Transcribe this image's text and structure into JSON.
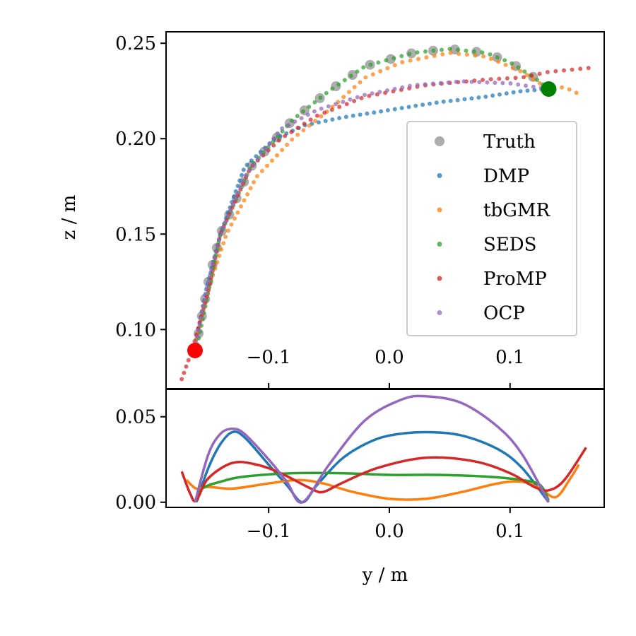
{
  "chart_data": [
    {
      "type": "scatter",
      "name": "trajectory-plot",
      "xlabel": "",
      "ylabel": "z / m",
      "xlim": [
        -0.185,
        0.178
      ],
      "ylim": [
        0.069,
        0.256
      ],
      "xticks": [
        -0.1,
        0.0,
        0.1
      ],
      "xtick_labels": [
        "−0.1",
        "0.0",
        "0.1"
      ],
      "yticks": [
        0.1,
        0.15,
        0.2,
        0.25
      ],
      "ytick_labels": [
        "0.10",
        "0.15",
        "0.20",
        "0.25"
      ],
      "legend_position": "center-right",
      "start_point": {
        "y": -0.161,
        "z": 0.089,
        "color": "#ff0000"
      },
      "goal_point": {
        "y": 0.132,
        "z": 0.226,
        "color": "#008000"
      },
      "series": [
        {
          "name": "Truth",
          "color": "#a9a9a9",
          "size": "large",
          "n": 28,
          "keypoints": [
            [
              -0.158,
              0.098
            ],
            [
              -0.15,
              0.125
            ],
            [
              -0.14,
              0.15
            ],
            [
              -0.115,
              0.185
            ],
            [
              -0.08,
              0.21
            ],
            [
              -0.05,
              0.225
            ],
            [
              -0.02,
              0.238
            ],
            [
              0.02,
              0.245
            ],
            [
              0.05,
              0.247
            ],
            [
              0.08,
              0.245
            ],
            [
              0.1,
              0.24
            ],
            [
              0.12,
              0.232
            ],
            [
              0.132,
              0.226
            ]
          ]
        },
        {
          "name": "DMP",
          "color": "#1f77b4",
          "size": "small",
          "n": 80,
          "keypoints": [
            [
              -0.161,
              0.092
            ],
            [
              -0.152,
              0.12
            ],
            [
              -0.14,
              0.15
            ],
            [
              -0.12,
              0.185
            ],
            [
              -0.095,
              0.2
            ],
            [
              -0.07,
              0.207
            ],
            [
              -0.04,
              0.211
            ],
            [
              0.0,
              0.215
            ],
            [
              0.04,
              0.219
            ],
            [
              0.08,
              0.222
            ],
            [
              0.11,
              0.225
            ],
            [
              0.132,
              0.226
            ]
          ]
        },
        {
          "name": "tbGMR",
          "color": "#ff7f0e",
          "size": "small",
          "n": 75,
          "keypoints": [
            [
              -0.16,
              0.095
            ],
            [
              -0.148,
              0.125
            ],
            [
              -0.135,
              0.15
            ],
            [
              -0.11,
              0.18
            ],
            [
              -0.08,
              0.2
            ],
            [
              -0.05,
              0.215
            ],
            [
              -0.02,
              0.232
            ],
            [
              0.01,
              0.24
            ],
            [
              0.05,
              0.245
            ],
            [
              0.08,
              0.243
            ],
            [
              0.11,
              0.235
            ],
            [
              0.132,
              0.226
            ],
            [
              0.145,
              0.227
            ],
            [
              0.155,
              0.224
            ]
          ]
        },
        {
          "name": "SEDS",
          "color": "#2ca02c",
          "size": "small",
          "n": 75,
          "keypoints": [
            [
              -0.159,
              0.092
            ],
            [
              -0.15,
              0.12
            ],
            [
              -0.14,
              0.15
            ],
            [
              -0.115,
              0.185
            ],
            [
              -0.08,
              0.21
            ],
            [
              -0.05,
              0.225
            ],
            [
              -0.02,
              0.238
            ],
            [
              0.02,
              0.245
            ],
            [
              0.05,
              0.247
            ],
            [
              0.08,
              0.245
            ],
            [
              0.1,
              0.24
            ],
            [
              0.12,
              0.232
            ],
            [
              0.132,
              0.226
            ]
          ]
        },
        {
          "name": "ProMP",
          "color": "#d62728",
          "size": "small",
          "n": 80,
          "keypoints": [
            [
              -0.172,
              0.074
            ],
            [
              -0.163,
              0.09
            ],
            [
              -0.15,
              0.12
            ],
            [
              -0.14,
              0.15
            ],
            [
              -0.115,
              0.185
            ],
            [
              -0.09,
              0.2
            ],
            [
              -0.06,
              0.212
            ],
            [
              -0.02,
              0.222
            ],
            [
              0.03,
              0.228
            ],
            [
              0.08,
              0.231
            ],
            [
              0.11,
              0.232
            ],
            [
              0.132,
              0.235
            ],
            [
              0.165,
              0.237
            ]
          ]
        },
        {
          "name": "OCP",
          "color": "#9467bd",
          "size": "small",
          "n": 75,
          "keypoints": [
            [
              -0.161,
              0.09
            ],
            [
              -0.152,
              0.12
            ],
            [
              -0.14,
              0.15
            ],
            [
              -0.12,
              0.18
            ],
            [
              -0.09,
              0.205
            ],
            [
              -0.06,
              0.215
            ],
            [
              -0.02,
              0.223
            ],
            [
              0.02,
              0.228
            ],
            [
              0.06,
              0.23
            ],
            [
              0.1,
              0.229
            ],
            [
              0.132,
              0.226
            ]
          ]
        }
      ]
    },
    {
      "type": "line",
      "name": "error-plot",
      "xlabel": "y / m",
      "ylabel": "",
      "xlim": [
        -0.185,
        0.178
      ],
      "ylim": [
        -0.003,
        0.066
      ],
      "xticks": [
        -0.1,
        0.0,
        0.1
      ],
      "xtick_labels": [
        "−0.1",
        "0.0",
        "0.1"
      ],
      "yticks": [
        0.0,
        0.05
      ],
      "ytick_labels": [
        "0.00",
        "0.05"
      ],
      "series": [
        {
          "name": "DMP",
          "color": "#1f77b4",
          "points": [
            [
              -0.16,
              0.0
            ],
            [
              -0.15,
              0.02
            ],
            [
              -0.14,
              0.034
            ],
            [
              -0.13,
              0.041
            ],
            [
              -0.12,
              0.038
            ],
            [
              -0.1,
              0.022
            ],
            [
              -0.085,
              0.01
            ],
            [
              -0.072,
              0.0
            ],
            [
              -0.06,
              0.01
            ],
            [
              -0.04,
              0.025
            ],
            [
              -0.02,
              0.034
            ],
            [
              0.0,
              0.039
            ],
            [
              0.03,
              0.041
            ],
            [
              0.06,
              0.039
            ],
            [
              0.09,
              0.031
            ],
            [
              0.11,
              0.02
            ],
            [
              0.132,
              0.0
            ]
          ]
        },
        {
          "name": "tbGMR",
          "color": "#ff7f0e",
          "points": [
            [
              -0.168,
              0.013
            ],
            [
              -0.16,
              0.008
            ],
            [
              -0.15,
              0.009
            ],
            [
              -0.13,
              0.008
            ],
            [
              -0.1,
              0.011
            ],
            [
              -0.075,
              0.013
            ],
            [
              -0.055,
              0.011
            ],
            [
              -0.03,
              0.006
            ],
            [
              0.0,
              0.002
            ],
            [
              0.03,
              0.002
            ],
            [
              0.06,
              0.006
            ],
            [
              0.09,
              0.011
            ],
            [
              0.11,
              0.012
            ],
            [
              0.125,
              0.008
            ],
            [
              0.138,
              0.003
            ],
            [
              0.15,
              0.014
            ],
            [
              0.157,
              0.022
            ]
          ]
        },
        {
          "name": "SEDS",
          "color": "#2ca02c",
          "points": [
            [
              -0.159,
              0.001
            ],
            [
              -0.155,
              0.008
            ],
            [
              -0.14,
              0.012
            ],
            [
              -0.12,
              0.015
            ],
            [
              -0.08,
              0.017
            ],
            [
              -0.04,
              0.017
            ],
            [
              0.0,
              0.016
            ],
            [
              0.04,
              0.016
            ],
            [
              0.08,
              0.015
            ],
            [
              0.11,
              0.013
            ],
            [
              0.125,
              0.01
            ],
            [
              0.132,
              0.001
            ]
          ]
        },
        {
          "name": "ProMP",
          "color": "#d62728",
          "points": [
            [
              -0.172,
              0.018
            ],
            [
              -0.165,
              0.005
            ],
            [
              -0.16,
              0.001
            ],
            [
              -0.15,
              0.014
            ],
            [
              -0.13,
              0.023
            ],
            [
              -0.11,
              0.022
            ],
            [
              -0.09,
              0.017
            ],
            [
              -0.065,
              0.008
            ],
            [
              -0.055,
              0.006
            ],
            [
              -0.04,
              0.011
            ],
            [
              -0.01,
              0.02
            ],
            [
              0.03,
              0.026
            ],
            [
              0.07,
              0.024
            ],
            [
              0.1,
              0.017
            ],
            [
              0.12,
              0.009
            ],
            [
              0.132,
              0.007
            ],
            [
              0.145,
              0.013
            ],
            [
              0.163,
              0.032
            ]
          ]
        },
        {
          "name": "OCP",
          "color": "#9467bd",
          "points": [
            [
              -0.161,
              0.0
            ],
            [
              -0.15,
              0.028
            ],
            [
              -0.14,
              0.04
            ],
            [
              -0.13,
              0.043
            ],
            [
              -0.12,
              0.04
            ],
            [
              -0.1,
              0.025
            ],
            [
              -0.085,
              0.012
            ],
            [
              -0.072,
              0.0
            ],
            [
              -0.05,
              0.022
            ],
            [
              -0.02,
              0.048
            ],
            [
              0.01,
              0.06
            ],
            [
              0.03,
              0.062
            ],
            [
              0.06,
              0.058
            ],
            [
              0.09,
              0.044
            ],
            [
              0.11,
              0.028
            ],
            [
              0.132,
              0.0
            ]
          ]
        }
      ]
    }
  ]
}
